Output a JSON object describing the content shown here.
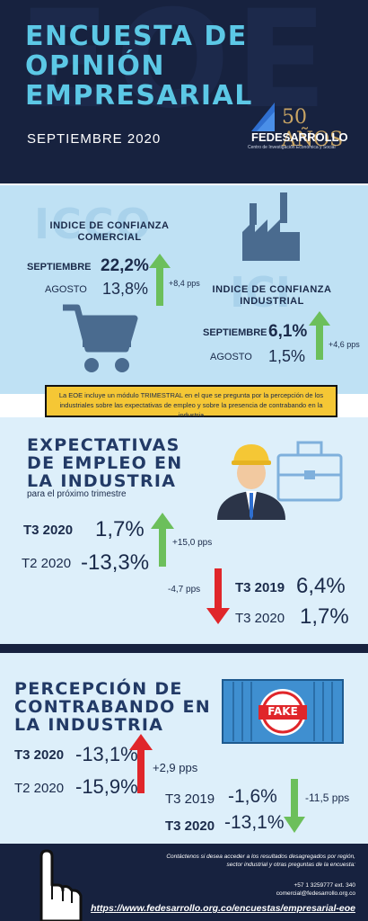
{
  "header": {
    "bg_letters": "EOE",
    "title": "ENCUESTA DE OPINIÓN EMPRESARIAL",
    "subtitle": "SEPTIEMBRE 2020",
    "logo_number": "50 AÑOS",
    "logo_name": "FEDESARROLLO",
    "logo_sub": "Centro de Investigación Económica y Social"
  },
  "icco": {
    "ghost": "ICCO",
    "heading": "INDICE DE CONFIANZA COMERCIAL",
    "current_label": "SEPTIEMBRE",
    "current_value": "22,2%",
    "previous_label": "AGOSTO",
    "previous_value": "13,8%",
    "change": "+8,4 pps"
  },
  "ici": {
    "ghost": "ICI",
    "heading": "INDICE DE CONFIANZA INDUSTRIAL",
    "current_label": "SEPTIEMBRE",
    "current_value": "6,1%",
    "previous_label": "AGOSTO",
    "previous_value": "1,5%",
    "change": "+4,6 pps"
  },
  "banner": {
    "text": "La EOE incluye un módulo TRIMESTRAL en el que se pregunta por la percepción de los industriales sobre las expectativas de empleo y sobre la presencia de contrabando en la industria"
  },
  "empleo": {
    "heading": "EXPECTATIVAS DE EMPLEO EN LA INDUSTRIA",
    "sub": "para el próximo trimestre",
    "a_label1": "T3 2020",
    "a_value1": "1,7%",
    "a_label2": "T2 2020",
    "a_value2": "-13,3%",
    "a_change": "+15,0 pps",
    "b_label1": "T3 2019",
    "b_value1": "6,4%",
    "b_label2": "T3 2020",
    "b_value2": "1,7%",
    "b_change": "-4,7 pps"
  },
  "contrabando": {
    "heading": "PERCEPCIÓN DE CONTRABANDO EN LA INDUSTRIA",
    "fake": "FAKE",
    "a_label1": "T3 2020",
    "a_value1": "-13,1%",
    "a_label2": "T2 2020",
    "a_value2": "-15,9%",
    "a_change": "+2,9 pps",
    "b_label1": "T3 2019",
    "b_value1": "-1,6%",
    "b_label2": "T3 2020",
    "b_value2": "-13,1%",
    "b_change": "-11,5 pps"
  },
  "footer": {
    "contact": "Contáctenos si desea acceder a los resultados desagregados por región, sector industrial y otras preguntas de la encuesta:",
    "phone": "+57 1 3259777 ext. 340",
    "email": "comercial@fedesarrollo.org.co",
    "url": "https://www.fedesarrollo.org.co/encuestas/empresarial-eoe"
  },
  "colors": {
    "navy": "#17223f",
    "cyan": "#5cc8e6",
    "light_blue": "#bfe1f4",
    "yellow": "#f5c735",
    "green": "#6cbf5b",
    "red": "#e0262a"
  }
}
